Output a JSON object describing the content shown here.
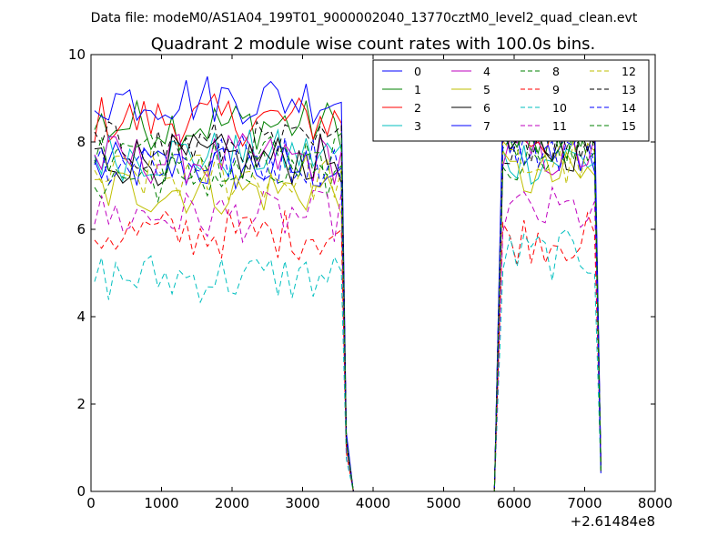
{
  "chart_data": {
    "type": "line",
    "suptitle": "Data file: modeM0/AS1A04_199T01_9000002040_13770cztM0_level2_quad_clean.evt",
    "title": "Quadrant 2 module wise count rates with 100.0s bins.",
    "xlabel": "",
    "ylabel": "",
    "x_offset_label": "+2.61484e8",
    "xlim": [
      0,
      8000
    ],
    "ylim": [
      0,
      10
    ],
    "x_ticks": [
      0,
      1000,
      2000,
      3000,
      4000,
      5000,
      6000,
      7000,
      8000
    ],
    "y_ticks": [
      0,
      2,
      4,
      6,
      8,
      10
    ],
    "grid": false,
    "legend_position": "top-right",
    "legend_columns": 4,
    "gap_rate": 0,
    "segments": [
      {
        "x_start": 50,
        "x_end": 3550,
        "drop_to": 3720
      },
      {
        "x_start": 5720,
        "x_end": 5840,
        "x_end_active": 7200,
        "rise_from": 5720,
        "drop_at": 7230
      }
    ],
    "series": [
      {
        "name": "0",
        "color": "#0000ff",
        "style": "solid",
        "seg1_mean": 7.4,
        "seg2_mean": 7.8
      },
      {
        "name": "1",
        "color": "#008000",
        "style": "solid",
        "seg1_mean": 8.4,
        "seg2_mean": 8.0
      },
      {
        "name": "2",
        "color": "#ff0000",
        "style": "solid",
        "seg1_mean": 8.5,
        "seg2_mean": 8.2
      },
      {
        "name": "3",
        "color": "#00bfbf",
        "style": "solid",
        "seg1_mean": 7.7,
        "seg2_mean": 7.6
      },
      {
        "name": "4",
        "color": "#bf00bf",
        "style": "solid",
        "seg1_mean": 7.6,
        "seg2_mean": 7.7
      },
      {
        "name": "5",
        "color": "#bfbf00",
        "style": "solid",
        "seg1_mean": 6.9,
        "seg2_mean": 7.2
      },
      {
        "name": "6",
        "color": "#000000",
        "style": "solid",
        "seg1_mean": 7.6,
        "seg2_mean": 7.9
      },
      {
        "name": "7",
        "color": "#0000ff",
        "style": "solid",
        "seg1_mean": 9.0,
        "seg2_mean": 8.9
      },
      {
        "name": "8",
        "color": "#008000",
        "style": "dashed",
        "seg1_mean": 7.2,
        "seg2_mean": 8.1
      },
      {
        "name": "9",
        "color": "#ff0000",
        "style": "dashed",
        "seg1_mean": 5.9,
        "seg2_mean": 5.8
      },
      {
        "name": "10",
        "color": "#00bfbf",
        "style": "dashed",
        "seg1_mean": 4.9,
        "seg2_mean": 5.4
      },
      {
        "name": "11",
        "color": "#bf00bf",
        "style": "dashed",
        "seg1_mean": 6.3,
        "seg2_mean": 6.4
      },
      {
        "name": "12",
        "color": "#bfbf00",
        "style": "dashed",
        "seg1_mean": 7.2,
        "seg2_mean": 7.5
      },
      {
        "name": "13",
        "color": "#000000",
        "style": "dashed",
        "seg1_mean": 7.9,
        "seg2_mean": 8.1
      },
      {
        "name": "14",
        "color": "#0000ff",
        "style": "dashed",
        "seg1_mean": 7.6,
        "seg2_mean": 7.9
      },
      {
        "name": "15",
        "color": "#008000",
        "style": "dashed",
        "seg1_mean": 7.7,
        "seg2_mean": 7.7
      }
    ]
  }
}
